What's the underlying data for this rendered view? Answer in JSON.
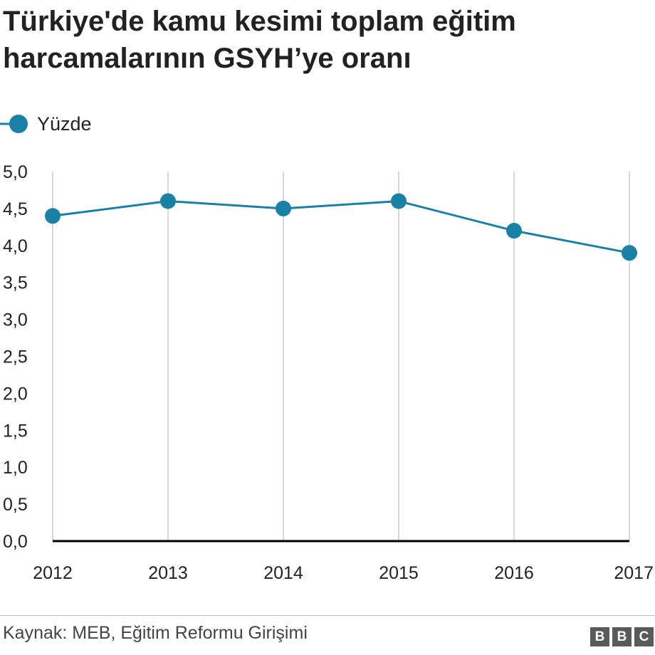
{
  "title": "Türkiye'de kamu kesimi toplam eğitim harcamalarının GSYH’ye oranı",
  "legend": {
    "label": "Yüzde"
  },
  "source": "Kaynak: MEB, Eğitim Reformu Girişimi",
  "logo": {
    "letters": [
      "B",
      "B",
      "C"
    ]
  },
  "colors": {
    "series": "#1a80a6",
    "grid": "#cccccc",
    "axis": "#000000",
    "text": "#222222"
  },
  "chart_data": {
    "type": "line",
    "title": "Türkiye'de kamu kesimi toplam eğitim harcamalarının GSYH’ye oranı",
    "xlabel": "",
    "ylabel": "",
    "categories": [
      "2012",
      "2013",
      "2014",
      "2015",
      "2016",
      "2017"
    ],
    "series": [
      {
        "name": "Yüzde",
        "values": [
          4.4,
          4.6,
          4.5,
          4.6,
          4.2,
          3.9
        ]
      }
    ],
    "ylim": [
      0,
      5
    ],
    "yticks": [
      "0,0",
      "0,5",
      "1,0",
      "1,5",
      "2,0",
      "2,5",
      "3,0",
      "3,5",
      "4,0",
      "4,5",
      "5,0"
    ],
    "grid": "vertical",
    "legend": "top-left"
  }
}
